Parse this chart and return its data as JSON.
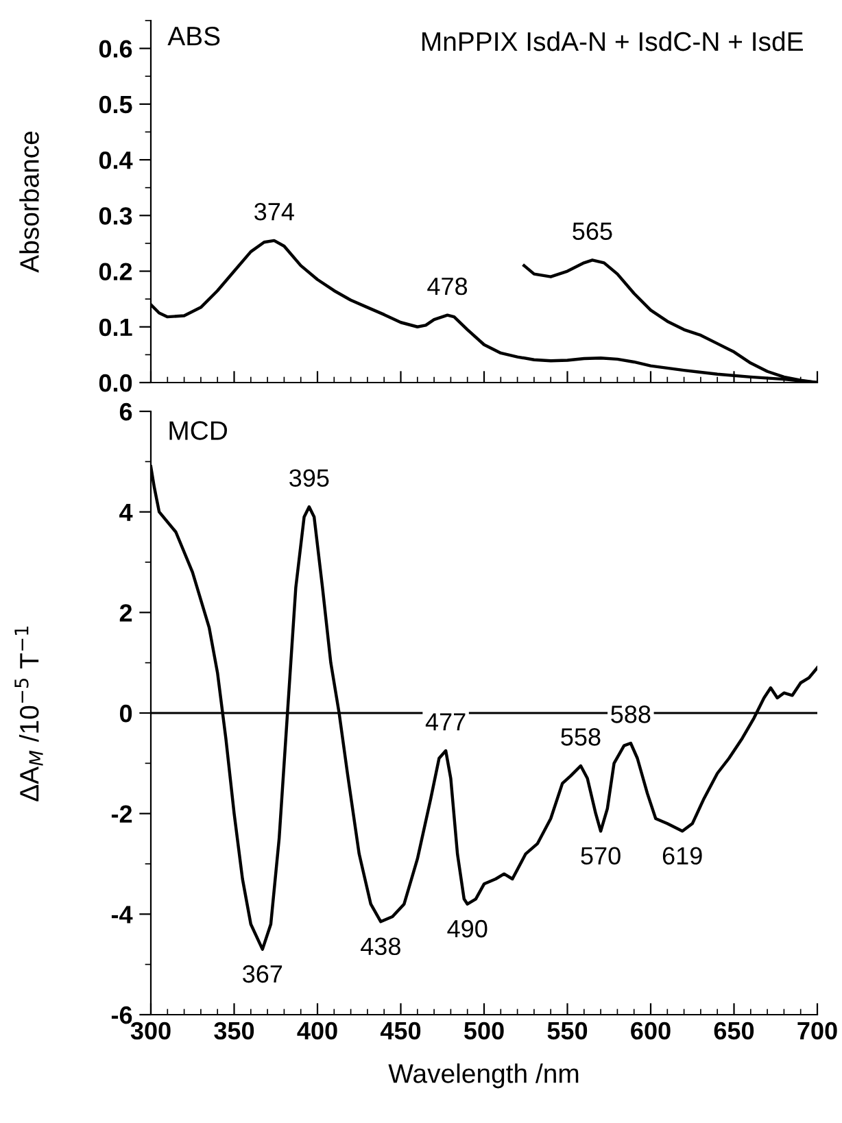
{
  "chart_data": [
    {
      "type": "line",
      "title": "MnPPIX IsdA-N + IsdC-N + IsdE",
      "ylabel": "Absorbance",
      "xlim": [
        300,
        700
      ],
      "ylim": [
        0,
        0.65
      ],
      "xticks": [
        300,
        350,
        400,
        450,
        500,
        550,
        600,
        650,
        700
      ],
      "yticks": [
        {
          "value": 0,
          "label": "0.0"
        },
        0.1,
        0.2,
        0.3,
        0.4,
        0.5,
        0.6
      ],
      "tick_labels": "y",
      "grid": false,
      "legend": false,
      "marker": "none",
      "line_style": "solid",
      "annotations": [
        "ABS",
        {
          "text": "374",
          "x": 374,
          "y": 0.255
        },
        {
          "text": "478",
          "x": 478,
          "y": 0.121
        },
        {
          "text": "565",
          "x": 565,
          "y": 0.22
        }
      ],
      "series": [
        {
          "color": "#000000",
          "x": [
            300,
            305,
            310,
            320,
            330,
            340,
            350,
            360,
            368,
            374,
            380,
            390,
            400,
            410,
            420,
            430,
            440,
            450,
            460,
            465,
            470,
            478,
            482,
            490,
            500,
            510,
            520,
            530,
            540,
            550,
            560,
            570,
            580,
            590,
            600,
            620,
            640,
            660,
            680,
            700
          ],
          "values": [
            0.14,
            0.125,
            0.118,
            0.12,
            0.135,
            0.165,
            0.2,
            0.235,
            0.252,
            0.255,
            0.245,
            0.21,
            0.185,
            0.165,
            0.148,
            0.135,
            0.122,
            0.108,
            0.1,
            0.103,
            0.113,
            0.121,
            0.118,
            0.095,
            0.068,
            0.053,
            0.046,
            0.041,
            0.039,
            0.04,
            0.043,
            0.044,
            0.042,
            0.037,
            0.03,
            0.022,
            0.015,
            0.01,
            0.006,
            0.0
          ]
        },
        {
          "color": "#000000",
          "x": [
            524,
            530,
            540,
            550,
            560,
            565,
            572,
            580,
            590,
            600,
            610,
            620,
            630,
            640,
            650,
            660,
            670,
            680,
            690,
            700
          ],
          "values": [
            0.21,
            0.195,
            0.19,
            0.2,
            0.215,
            0.22,
            0.215,
            0.195,
            0.16,
            0.13,
            0.11,
            0.095,
            0.085,
            0.07,
            0.055,
            0.035,
            0.02,
            0.01,
            0.004,
            0.0
          ]
        }
      ]
    },
    {
      "type": "line",
      "xlabel": "Wavelength /nm",
      "ylabel": "ΔA$_{M}$ /10$^{−5}$ T$^{−1}$",
      "xlim": [
        300,
        700
      ],
      "ylim": [
        -6,
        6
      ],
      "xticks": [
        300,
        350,
        400,
        450,
        500,
        550,
        600,
        650,
        700
      ],
      "yticks": [
        -6,
        -4,
        -2,
        0,
        2,
        4,
        6
      ],
      "grid": false,
      "legend": false,
      "marker": "none",
      "line_style": "solid",
      "ref_lines": [
        {
          "axis": "y",
          "value": 0,
          "color": "#000000"
        }
      ],
      "annotations": [
        "MCD",
        {
          "text": "395",
          "x": 395,
          "y": 4.1
        },
        {
          "text": "367",
          "x": 367,
          "y": -4.7
        },
        {
          "text": "438",
          "x": 438,
          "y": -4.15
        },
        {
          "text": "477",
          "x": 477,
          "y": -0.75
        },
        {
          "text": "490",
          "x": 490,
          "y": -3.8
        },
        {
          "text": "558",
          "x": 558,
          "y": -1.05
        },
        {
          "text": "570",
          "x": 570,
          "y": -2.35
        },
        {
          "text": "588",
          "x": 588,
          "y": -0.6
        },
        {
          "text": "619",
          "x": 619,
          "y": -2.35
        }
      ],
      "series": [
        {
          "color": "#000000",
          "x": [
            300,
            302,
            305,
            315,
            325,
            335,
            340,
            345,
            350,
            355,
            360,
            367,
            372,
            377,
            382,
            387,
            392,
            395,
            398,
            403,
            408,
            413,
            418,
            425,
            432,
            438,
            445,
            452,
            460,
            468,
            473,
            477,
            480,
            484,
            488,
            490,
            495,
            500,
            507,
            512,
            517,
            525,
            532,
            540,
            547,
            552,
            558,
            562,
            567,
            570,
            574,
            578,
            584,
            588,
            592,
            598,
            603,
            610,
            619,
            625,
            632,
            640,
            647,
            655,
            662,
            668,
            672,
            676,
            680,
            685,
            690,
            695,
            700
          ],
          "values": [
            4.9,
            4.5,
            4.0,
            3.6,
            2.8,
            1.7,
            0.8,
            -0.5,
            -2.0,
            -3.3,
            -4.2,
            -4.7,
            -4.2,
            -2.5,
            0.0,
            2.5,
            3.9,
            4.1,
            3.9,
            2.5,
            1.0,
            0.0,
            -1.2,
            -2.8,
            -3.8,
            -4.15,
            -4.05,
            -3.8,
            -2.9,
            -1.7,
            -0.9,
            -0.75,
            -1.3,
            -2.8,
            -3.7,
            -3.8,
            -3.7,
            -3.4,
            -3.3,
            -3.2,
            -3.3,
            -2.8,
            -2.6,
            -2.1,
            -1.4,
            -1.25,
            -1.05,
            -1.3,
            -2.0,
            -2.35,
            -1.9,
            -1.0,
            -0.65,
            -0.6,
            -0.9,
            -1.6,
            -2.1,
            -2.2,
            -2.35,
            -2.2,
            -1.7,
            -1.2,
            -0.9,
            -0.5,
            -0.1,
            0.3,
            0.5,
            0.3,
            0.4,
            0.35,
            0.6,
            0.7,
            0.9
          ]
        }
      ]
    }
  ]
}
